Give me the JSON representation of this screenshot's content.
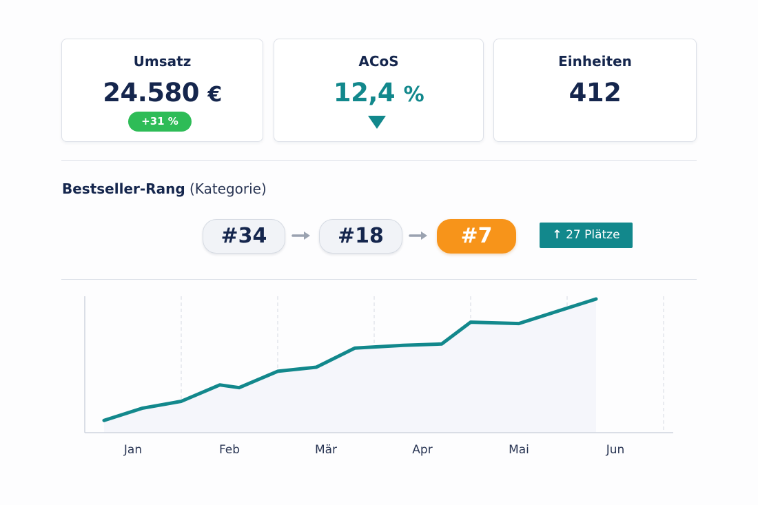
{
  "kpis": [
    {
      "title": "Umsatz",
      "value": "24.580",
      "unit": "€",
      "badge": "+31 %"
    },
    {
      "title": "ACoS",
      "value": "12,4",
      "unit": "%",
      "trend": "down",
      "trend_icon": "triangle-down-icon"
    },
    {
      "title": "Einheiten",
      "value": "412"
    }
  ],
  "ranking": {
    "title": "Bestseller-Rang",
    "subtitle": "(Kategorie)",
    "steps": [
      "#34",
      "#18",
      "#7"
    ],
    "change_arrow": "↑",
    "change_label": "27 Plätze"
  },
  "colors": {
    "navy": "#15264d",
    "teal": "#12888c",
    "green": "#2ebc57",
    "orange": "#f7941a"
  },
  "chart_data": {
    "type": "line",
    "x_labels": [
      "Jan",
      "Feb",
      "Mär",
      "Apr",
      "Mai",
      "Jun"
    ],
    "x": [
      0.2,
      0.6,
      1.0,
      1.4,
      1.6,
      2.0,
      2.4,
      2.8,
      3.3,
      3.7,
      4.0,
      4.5,
      4.9,
      5.3
    ],
    "y": [
      9,
      18,
      23,
      35,
      33,
      45,
      48,
      62,
      64,
      65,
      81,
      80,
      89,
      98
    ],
    "xlim": [
      0,
      6.1
    ],
    "ylim": [
      0,
      100
    ],
    "grid": "vertical dashed",
    "fill": "area"
  }
}
